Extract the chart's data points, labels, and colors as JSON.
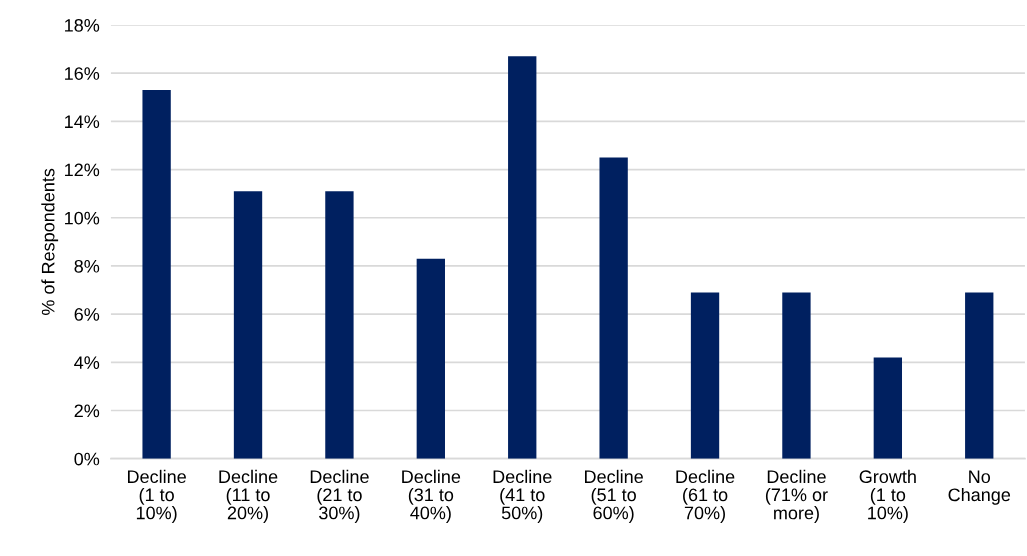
{
  "chart_data": {
    "type": "bar",
    "ylabel": "% of Respondents",
    "categories": [
      "Decline (1 to 10%)",
      "Decline (11 to 20%)",
      "Decline (21 to 30%)",
      "Decline (31 to 40%)",
      "Decline (41 to 50%)",
      "Decline (51 to 60%)",
      "Decline (61 to 70%)",
      "Decline (71% or more)",
      "Growth (1 to 10%)",
      "No Change"
    ],
    "values": [
      15.3,
      11.1,
      11.1,
      8.3,
      16.7,
      12.5,
      6.9,
      6.9,
      4.2,
      6.9
    ],
    "color": "#002060",
    "ylim": [
      0,
      18
    ],
    "yticks": [
      {
        "value": 0,
        "label": "0%"
      },
      {
        "value": 2,
        "label": "2%"
      },
      {
        "value": 4,
        "label": "4%"
      },
      {
        "value": 6,
        "label": "6%"
      },
      {
        "value": 8,
        "label": "8%"
      },
      {
        "value": 10,
        "label": "10%"
      },
      {
        "value": 12,
        "label": "12%"
      },
      {
        "value": 14,
        "label": "14%"
      },
      {
        "value": 16,
        "label": "16%"
      },
      {
        "value": 18,
        "label": "18%"
      }
    ],
    "grid": "y"
  }
}
